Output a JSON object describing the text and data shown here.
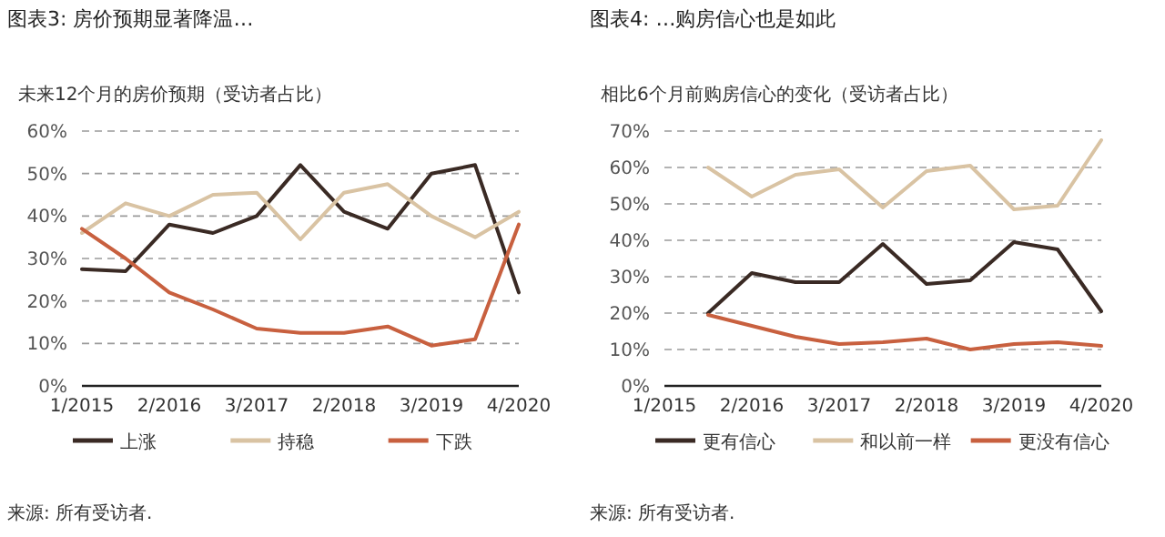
{
  "chart_data": [
    {
      "type": "line",
      "title": "图表3: 房价预期显著降温…",
      "subtitle": "未来12个月的房价预期（受访者占比）",
      "categories": [
        "1/2015",
        null,
        "2/2016",
        null,
        "3/2017",
        null,
        "2/2018",
        null,
        "3/2019",
        null,
        "4/2020"
      ],
      "series": [
        {
          "name": "上涨",
          "color": "#3a2a24",
          "values": [
            27.5,
            27,
            38,
            36,
            40,
            52,
            41,
            37,
            50,
            52,
            22
          ]
        },
        {
          "name": "持稳",
          "color": "#d9c3a3",
          "values": [
            36,
            43,
            40,
            45,
            45.5,
            34.5,
            45.5,
            47.5,
            40,
            35,
            41
          ]
        },
        {
          "name": "下跌",
          "color": "#c8603f",
          "values": [
            37,
            30,
            22,
            18,
            13.5,
            12.5,
            12.5,
            14,
            9.5,
            11,
            38
          ]
        }
      ],
      "ylim": [
        0,
        60
      ],
      "yticks": [
        {
          "value": 0,
          "label": "0%"
        },
        {
          "value": 10,
          "label": "10%"
        },
        {
          "value": 20,
          "label": "20%"
        },
        {
          "value": 30,
          "label": "30%"
        },
        {
          "value": 40,
          "label": "40%"
        },
        {
          "value": 50,
          "label": "50%"
        },
        {
          "value": 60,
          "label": "60%"
        }
      ],
      "grid": "y",
      "legend": "bottom",
      "marker": "none",
      "line_style": "solid",
      "annotations": [
        "来源: 所有受访者."
      ]
    },
    {
      "type": "line",
      "title": "图表4: …购房信心也是如此",
      "subtitle": "相比6个月前购房信心的变化（受访者占比）",
      "categories": [
        "1/2015",
        null,
        "2/2016",
        null,
        "3/2017",
        null,
        "2/2018",
        null,
        "3/2019",
        null,
        "4/2020"
      ],
      "series": [
        {
          "name": "更有信心",
          "color": "#3a2a24",
          "values": [
            null,
            20,
            31,
            28.5,
            28.5,
            39,
            28,
            29,
            39.5,
            37.5,
            20.5
          ]
        },
        {
          "name": "和以前一样",
          "color": "#d9c3a3",
          "values": [
            null,
            60,
            52,
            58,
            59.5,
            49,
            59,
            60.5,
            48.5,
            49.5,
            67.5
          ]
        },
        {
          "name": "更没有信心",
          "color": "#c8603f",
          "values": [
            null,
            19.5,
            16.5,
            13.5,
            11.5,
            12,
            13,
            10,
            11.5,
            12,
            11
          ]
        }
      ],
      "ylim": [
        0,
        70
      ],
      "yticks": [
        {
          "value": 0,
          "label": "0%"
        },
        {
          "value": 10,
          "label": "10%"
        },
        {
          "value": 20,
          "label": "20%"
        },
        {
          "value": 30,
          "label": "30%"
        },
        {
          "value": 40,
          "label": "40%"
        },
        {
          "value": 50,
          "label": "50%"
        },
        {
          "value": 60,
          "label": "60%"
        },
        {
          "value": 70,
          "label": "70%"
        }
      ],
      "grid": "y",
      "legend": "bottom",
      "marker": "none",
      "line_style": "solid",
      "annotations": [
        "来源: 所有受访者."
      ]
    }
  ]
}
